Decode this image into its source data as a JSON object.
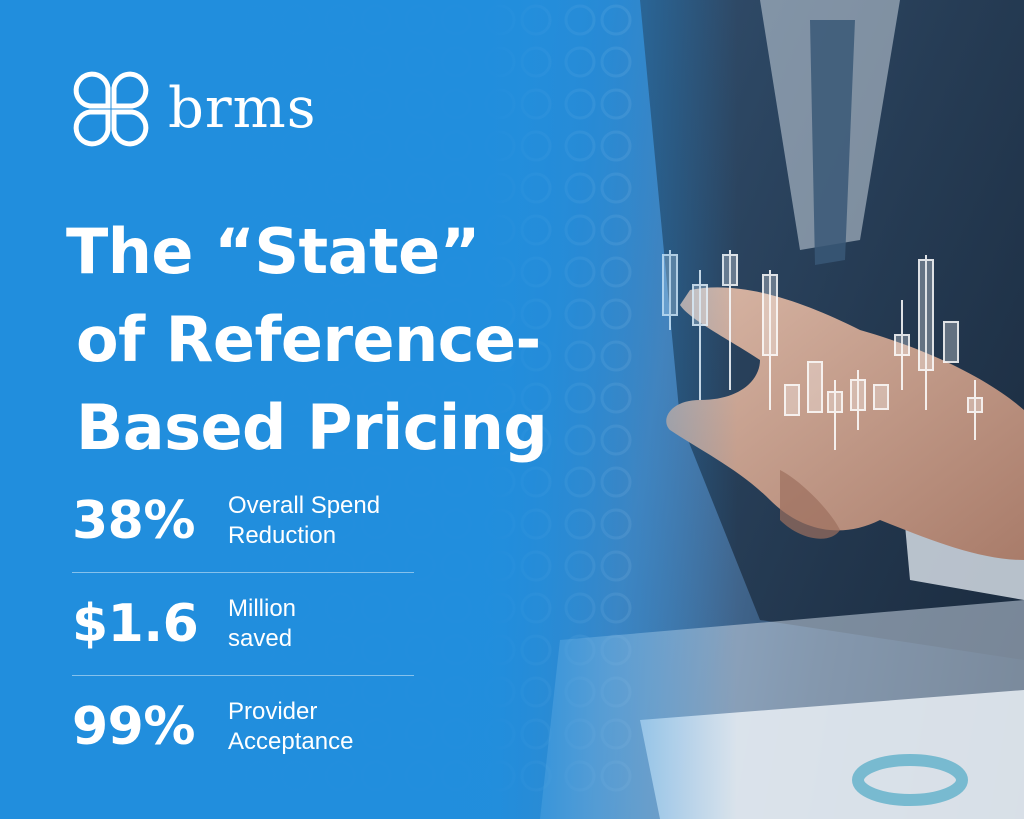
{
  "brand": {
    "name": "brms",
    "logo_icon": "four-petal-logo-icon"
  },
  "headline": {
    "line1": "The “State”",
    "line2": "of Reference-",
    "line3": "Based Pricing"
  },
  "stats": [
    {
      "value": "38%",
      "label_line1": "Overall Spend",
      "label_line2": "Reduction"
    },
    {
      "value": "$1.6",
      "label_line1": "Million",
      "label_line2": "saved"
    },
    {
      "value": "99%",
      "label_line1": "Provider",
      "label_line2": "Acceptance"
    }
  ],
  "colors": {
    "background_blue": "#218edd",
    "text": "#ffffff"
  },
  "photo": {
    "subject": "businessman-touching-holographic-chart"
  }
}
